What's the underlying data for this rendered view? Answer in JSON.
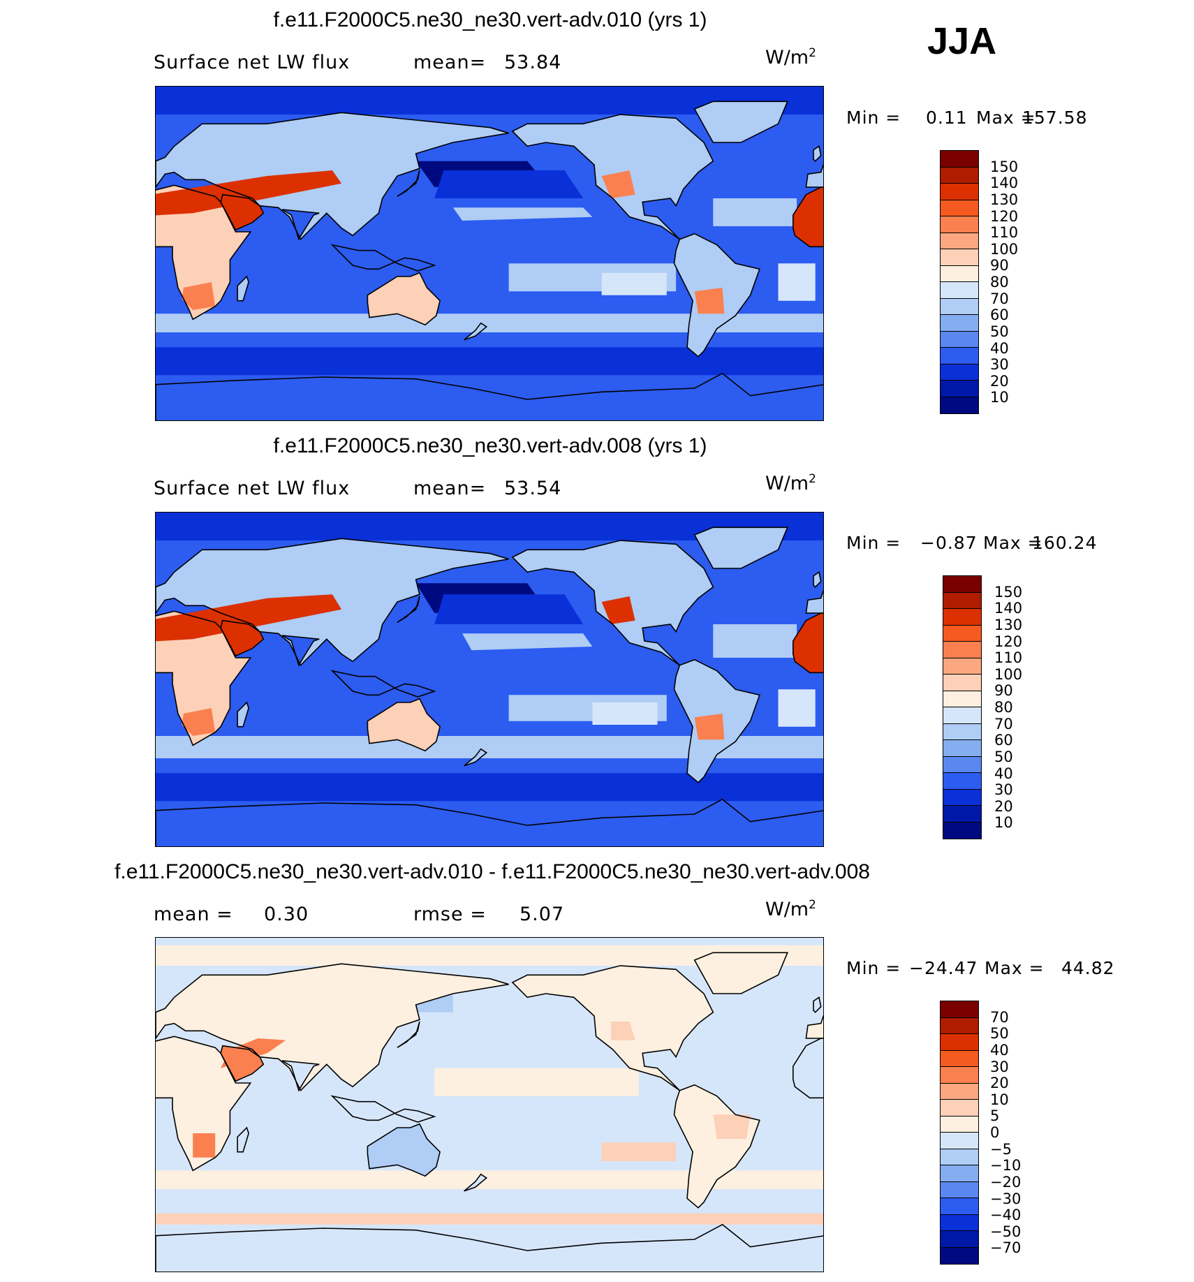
{
  "season": "JJA",
  "panels": [
    {
      "title": "f.e11.F2000C5.ne30_ne30.vert-adv.010 (yrs 1)",
      "left_label": "Surface net LW flux",
      "mid_label": "mean=",
      "mid_value": "53.84",
      "units_base": "W/m",
      "units_sup": "2",
      "min_label": "Min =",
      "min_value": "0.11",
      "max_label": "Max =",
      "max_value": "157.58",
      "colorbar": {
        "labels": [
          "150",
          "140",
          "130",
          "120",
          "110",
          "100",
          "90",
          "80",
          "70",
          "60",
          "50",
          "40",
          "30",
          "20",
          "10"
        ],
        "colors": [
          "#7a0000",
          "#b01c00",
          "#dc3000",
          "#f55a20",
          "#fa8050",
          "#fba880",
          "#fdd0b8",
          "#fdf0e0",
          "#d6e6fa",
          "#afcdf5",
          "#84aef0",
          "#5a88f0",
          "#2c5cf0",
          "#0a30d8",
          "#0018a8",
          "#000a80"
        ]
      },
      "palette": {
        "ocean_base": "#2c5cf0",
        "ocean_light": "#afcdf5",
        "ocean_pale": "#d6e6fa",
        "ocean_dark": "#0a30d8",
        "ocean_deep": "#000a80",
        "land_hot": "#dc3000",
        "land_warm": "#fa8050",
        "land_mild": "#fdd0b8"
      }
    },
    {
      "title": "f.e11.F2000C5.ne30_ne30.vert-adv.008 (yrs 1)",
      "left_label": "Surface net LW flux",
      "mid_label": "mean=",
      "mid_value": "53.54",
      "units_base": "W/m",
      "units_sup": "2",
      "min_label": "Min =",
      "min_value": "−0.87",
      "max_label": "Max =",
      "max_value": "160.24",
      "colorbar": {
        "labels": [
          "150",
          "140",
          "130",
          "120",
          "110",
          "100",
          "90",
          "80",
          "70",
          "60",
          "50",
          "40",
          "30",
          "20",
          "10"
        ],
        "colors": [
          "#7a0000",
          "#b01c00",
          "#dc3000",
          "#f55a20",
          "#fa8050",
          "#fba880",
          "#fdd0b8",
          "#fdf0e0",
          "#d6e6fa",
          "#afcdf5",
          "#84aef0",
          "#5a88f0",
          "#2c5cf0",
          "#0a30d8",
          "#0018a8",
          "#000a80"
        ]
      },
      "palette": {
        "ocean_base": "#2c5cf0",
        "ocean_light": "#afcdf5",
        "ocean_pale": "#d6e6fa",
        "ocean_dark": "#0a30d8",
        "ocean_deep": "#000a80",
        "land_hot": "#dc3000",
        "land_warm": "#fa8050",
        "land_mild": "#fdd0b8"
      }
    },
    {
      "title": "f.e11.F2000C5.ne30_ne30.vert-adv.010 - f.e11.F2000C5.ne30_ne30.vert-adv.008",
      "left_label": "mean =",
      "left_value": "0.30",
      "mid_label": "rmse =",
      "mid_value": "5.07",
      "units_base": "W/m",
      "units_sup": "2",
      "min_label": "Min =",
      "min_value": "−24.47",
      "max_label": "Max =",
      "max_value": "44.82",
      "colorbar": {
        "labels": [
          "70",
          "50",
          "40",
          "30",
          "20",
          "10",
          "5",
          "0",
          "−5",
          "−10",
          "−20",
          "−30",
          "−40",
          "−50",
          "−70"
        ],
        "colors": [
          "#7a0000",
          "#b01c00",
          "#dc3000",
          "#f55a20",
          "#fa8050",
          "#fba880",
          "#fdd0b8",
          "#fdf0e0",
          "#d6e6fa",
          "#afcdf5",
          "#84aef0",
          "#5a88f0",
          "#2c5cf0",
          "#0a30d8",
          "#0018a8",
          "#000a80"
        ]
      },
      "palette": {
        "ocean_base": "#d6e6fa",
        "ocean_light": "#fdf0e0",
        "ocean_pale": "#fdd0b8",
        "ocean_dark": "#afcdf5",
        "ocean_deep": "#84aef0",
        "land_hot": "#f55a20",
        "land_warm": "#fa8050",
        "land_mild": "#fdd0b8"
      }
    }
  ]
}
